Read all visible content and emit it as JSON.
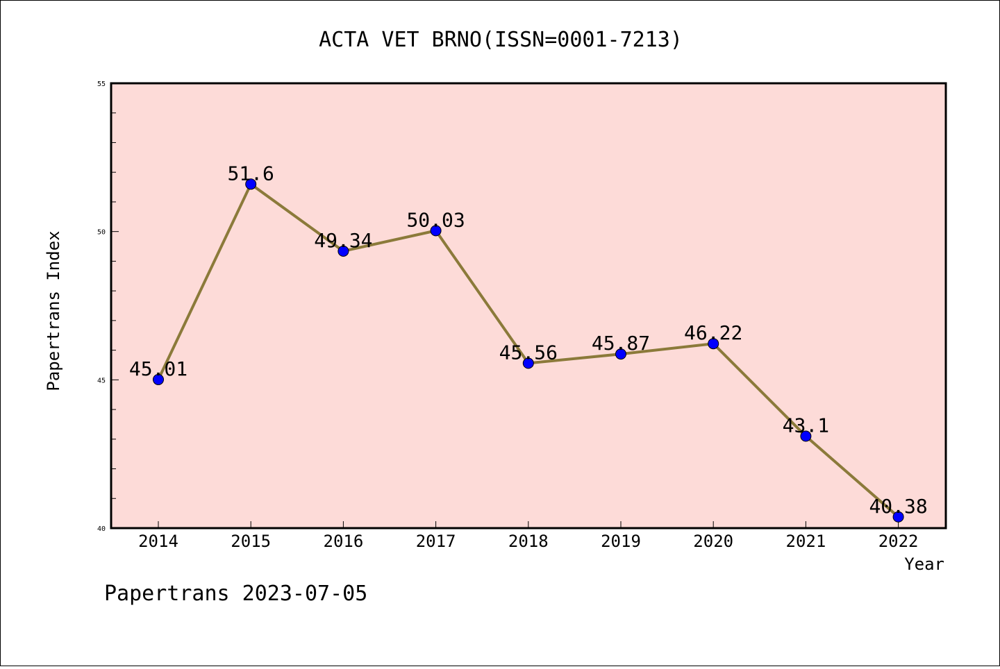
{
  "chart_data": {
    "type": "line",
    "title": "ACTA VET BRNO(ISSN=0001-7213)",
    "xlabel": "Year",
    "ylabel": "Papertrans Index",
    "footer": "Papertrans 2023-07-05",
    "categories": [
      "2014",
      "2015",
      "2016",
      "2017",
      "2018",
      "2019",
      "2020",
      "2021",
      "2022"
    ],
    "values": [
      45.01,
      51.6,
      49.34,
      50.03,
      45.56,
      45.87,
      46.22,
      43.1,
      40.38
    ],
    "value_labels": [
      "45.01",
      "51.6",
      "49.34",
      "50.03",
      "45.56",
      "45.87",
      "46.22",
      "43.1",
      "40.38"
    ],
    "ylim": [
      40,
      55
    ],
    "yticks": [
      "40",
      "45",
      "50",
      "55"
    ],
    "grid": false,
    "colors": {
      "plot_background": "#fddbd8",
      "line": "#8b7a3a",
      "marker": "#0000ff"
    }
  }
}
